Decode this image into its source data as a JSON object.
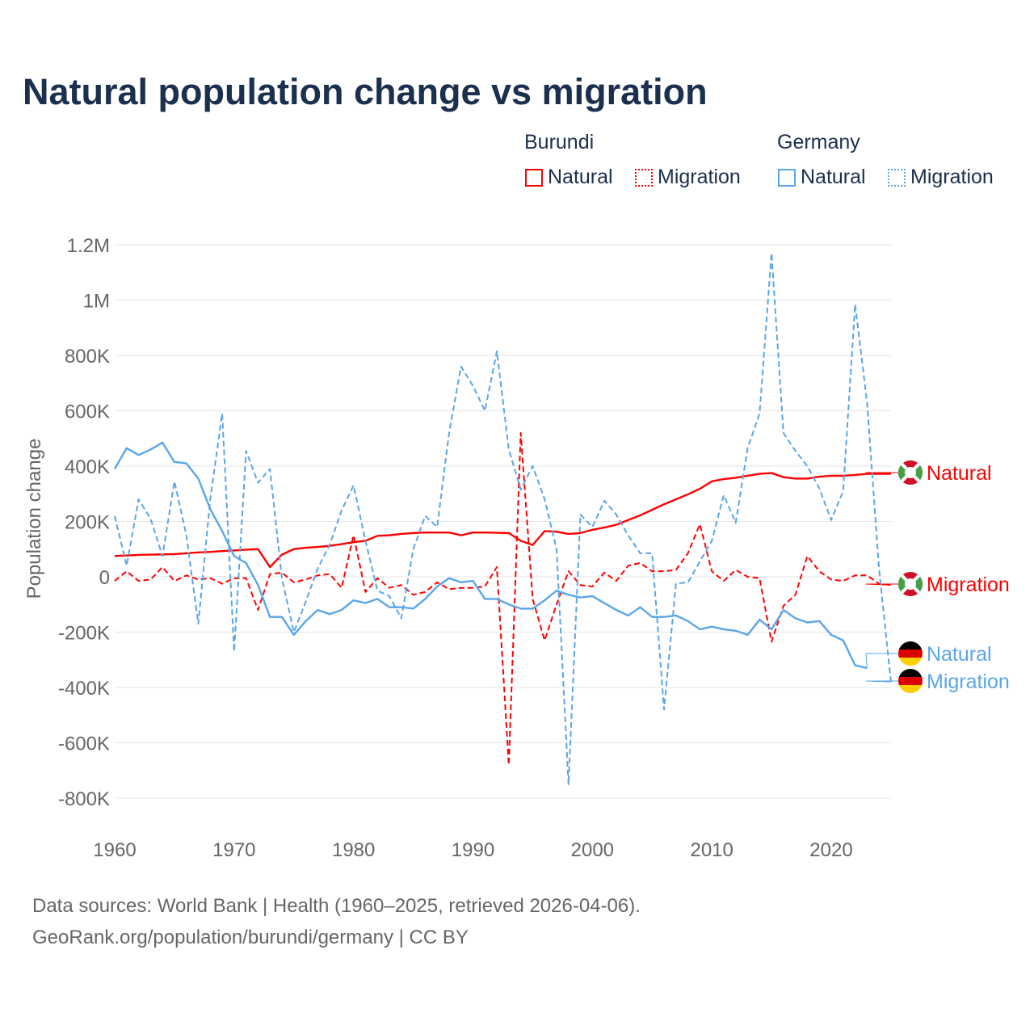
{
  "title": "Natural population change vs migration",
  "legend": {
    "groups": [
      {
        "name": "Burundi",
        "color": "#ff0000",
        "items": [
          "Natural",
          "Migration"
        ]
      },
      {
        "name": "Germany",
        "color": "#5aa5ea",
        "items": [
          "Natural",
          "Migration"
        ]
      }
    ]
  },
  "footer": {
    "line1": "Data sources: World Bank | Health (1960–2025, retrieved 2026-04-06).",
    "line2": "GeoRank.org/population/burundi/germany | CC BY"
  },
  "chart_data": {
    "type": "line",
    "title": "Natural population change vs migration",
    "xlabel": "",
    "ylabel": "Population change",
    "xlim": [
      1960,
      2025
    ],
    "ylim": [
      -800000,
      1200000
    ],
    "x_ticks": [
      "1960",
      "1970",
      "1980",
      "1990",
      "2000",
      "2010",
      "2020"
    ],
    "y_ticks": [
      {
        "v": 1200000,
        "label": "1.2M"
      },
      {
        "v": 1000000,
        "label": "1M"
      },
      {
        "v": 800000,
        "label": "800K"
      },
      {
        "v": 600000,
        "label": "600K"
      },
      {
        "v": 400000,
        "label": "400K"
      },
      {
        "v": 200000,
        "label": "200K"
      },
      {
        "v": 0,
        "label": "0"
      },
      {
        "v": -200000,
        "label": "-200K"
      },
      {
        "v": -400000,
        "label": "-400K"
      },
      {
        "v": -600000,
        "label": "-600K"
      },
      {
        "v": -800000,
        "label": "-800K"
      }
    ],
    "grid": true,
    "legend_placement": "top-right",
    "x_start": 1960,
    "series": [
      {
        "name": "Burundi Natural",
        "country": "Burundi",
        "end_label": "Natural",
        "color": "#ff0000",
        "dashed": false,
        "values": [
          75,
          77,
          79,
          80,
          81,
          82,
          85,
          88,
          90,
          93,
          95,
          98,
          100,
          35,
          80,
          100,
          105,
          108,
          112,
          118,
          125,
          130,
          148,
          150,
          155,
          158,
          160,
          160,
          160,
          150,
          160,
          160,
          159,
          158,
          130,
          115,
          165,
          163,
          155,
          158,
          170,
          178,
          188,
          205,
          222,
          242,
          262,
          280,
          298,
          318,
          345,
          353,
          358,
          365,
          372,
          375,
          360,
          355,
          355,
          362,
          365,
          365,
          368,
          372,
          372,
          372
        ],
        "unit_multiplier": 1000
      },
      {
        "name": "Burundi Migration",
        "country": "Burundi",
        "end_label": "Migration",
        "color": "#ff0000",
        "dashed": true,
        "values": [
          -15,
          20,
          -15,
          -10,
          35,
          -15,
          5,
          -10,
          -5,
          -25,
          -5,
          -5,
          -120,
          10,
          15,
          -20,
          -10,
          5,
          10,
          -40,
          150,
          -55,
          -5,
          -40,
          -30,
          -65,
          -55,
          -20,
          -45,
          -40,
          -40,
          -35,
          35,
          -680,
          520,
          -80,
          -230,
          -100,
          20,
          -30,
          -35,
          15,
          -15,
          40,
          50,
          20,
          20,
          25,
          85,
          190,
          20,
          -15,
          25,
          0,
          -5,
          -235,
          -105,
          -65,
          75,
          20,
          -10,
          -15,
          5,
          5,
          -25,
          -30
        ],
        "unit_multiplier": 1000
      },
      {
        "name": "Germany Natural",
        "country": "Germany",
        "end_label": "Natural",
        "color": "#5aa5ea",
        "dashed": false,
        "values": [
          390,
          465,
          440,
          460,
          485,
          415,
          410,
          355,
          245,
          165,
          75,
          50,
          -30,
          -145,
          -145,
          -210,
          -160,
          -120,
          -135,
          -120,
          -85,
          -95,
          -80,
          -110,
          -110,
          -115,
          -80,
          -35,
          -5,
          -20,
          -15,
          -80,
          -80,
          -100,
          -115,
          -115,
          -85,
          -50,
          -65,
          -75,
          -70,
          -95,
          -120,
          -140,
          -110,
          -145,
          -145,
          -140,
          -160,
          -190,
          -180,
          -190,
          -195,
          -210,
          -155,
          -190,
          -120,
          -150,
          -165,
          -160,
          -210,
          -230,
          -320,
          -330
        ],
        "unit_multiplier": 1000
      },
      {
        "name": "Germany Migration",
        "country": "Germany",
        "end_label": "Migration",
        "color": "#5aa5ea",
        "dashed": true,
        "values": [
          220,
          40,
          280,
          210,
          75,
          345,
          150,
          -170,
          280,
          590,
          -270,
          455,
          340,
          390,
          -5,
          -200,
          -90,
          30,
          115,
          240,
          330,
          130,
          -50,
          -70,
          -150,
          100,
          220,
          180,
          520,
          760,
          690,
          600,
          815,
          460,
          315,
          400,
          280,
          100,
          -750,
          225,
          180,
          275,
          225,
          150,
          85,
          85,
          -480,
          -25,
          -20,
          55,
          130,
          295,
          195,
          465,
          590,
          1170,
          520,
          455,
          400,
          320,
          205,
          310,
          985,
          630,
          30,
          -380
        ],
        "unit_multiplier": 1000
      }
    ]
  }
}
